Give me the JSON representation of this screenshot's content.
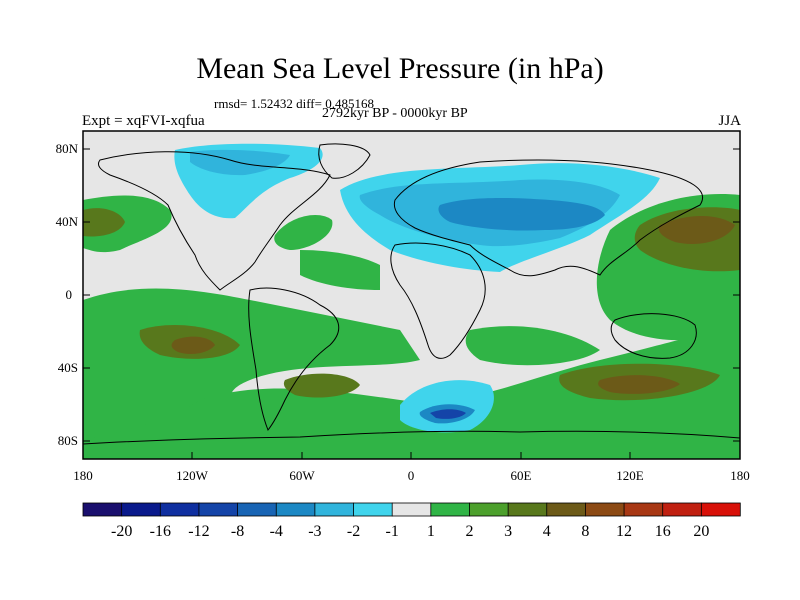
{
  "title": "Mean Sea Level Pressure (in hPa)",
  "stats_text": "rmsd= 1.52432 diff= 0.485168",
  "period_text": "2792kyr BP - 0000kyr BP",
  "experiment_text": "Expt = xqFVI-xqfua",
  "season_text": "JJA",
  "lat_labels": [
    "80N",
    "40N",
    "0",
    "40S",
    "80S"
  ],
  "lon_labels": [
    "180",
    "120W",
    "60W",
    "0",
    "60E",
    "120E",
    "180"
  ],
  "colorbar": {
    "labels": [
      "-20",
      "-16",
      "-12",
      "-8",
      "-4",
      "-3",
      "-2",
      "-1",
      "1",
      "2",
      "3",
      "4",
      "8",
      "12",
      "16",
      "20"
    ],
    "colors": [
      "#1a0f6e",
      "#0a1a8c",
      "#0f2fa0",
      "#1444a8",
      "#1864b4",
      "#1c88c4",
      "#30b4dc",
      "#40d4ec",
      "#e6e6e6",
      "#30b446",
      "#4ca02c",
      "#58781c",
      "#6c5a18",
      "#8c4a14",
      "#a83814",
      "#c02010",
      "#d81008"
    ]
  }
}
